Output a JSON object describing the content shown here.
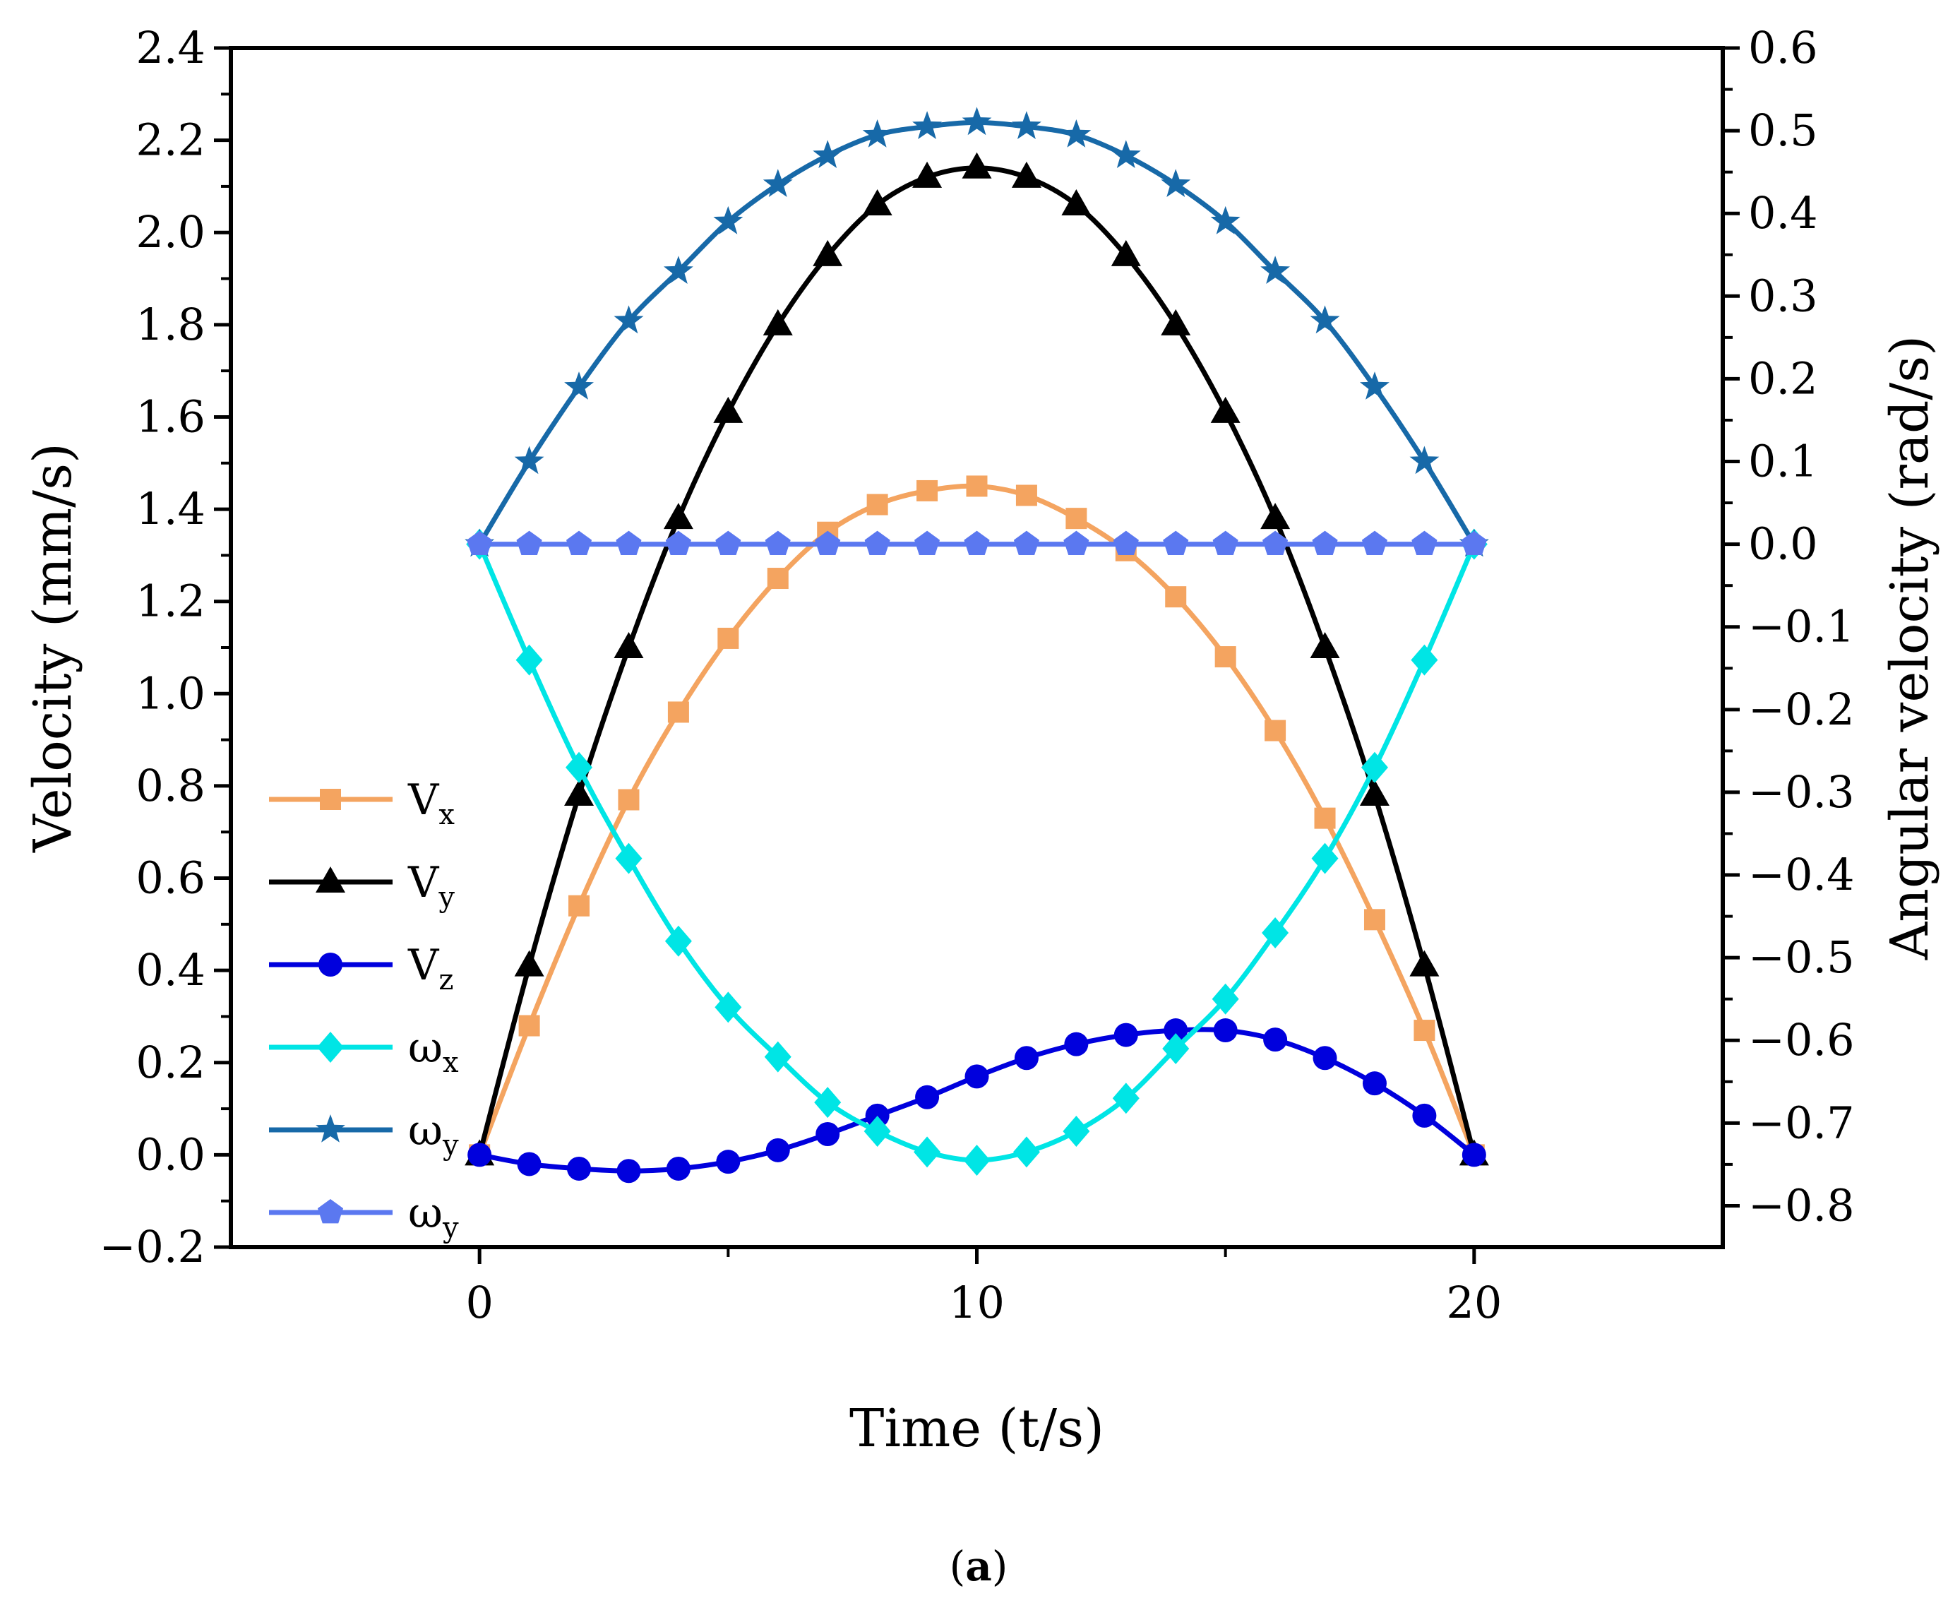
{
  "chart_data": {
    "type": "line",
    "title": "",
    "xlabel": "Time (t/s)",
    "ylabel": "Velocity (mm/s)",
    "y2label": "Angular velocity (rad/s)",
    "caption_open": "(",
    "caption_bold": "a",
    "caption_close": ")",
    "xlim": [
      -5,
      25
    ],
    "ylim": [
      -0.2,
      2.4
    ],
    "y2lim": [
      -0.85,
      0.6
    ],
    "xticks": [
      0,
      10,
      20
    ],
    "yticks": [
      -0.2,
      0.0,
      0.2,
      0.4,
      0.6,
      0.8,
      1.0,
      1.2,
      1.4,
      1.6,
      1.8,
      2.0,
      2.2,
      2.4
    ],
    "y2ticks": [
      -0.8,
      -0.7,
      -0.6,
      -0.5,
      -0.4,
      -0.3,
      -0.2,
      -0.1,
      0.0,
      0.1,
      0.2,
      0.3,
      0.4,
      0.5,
      0.6
    ],
    "x": [
      0,
      1,
      2,
      3,
      4,
      5,
      6,
      7,
      8,
      9,
      10,
      11,
      12,
      13,
      14,
      15,
      16,
      17,
      18,
      19,
      20
    ],
    "legend_position": "left",
    "series": [
      {
        "name": "V",
        "sub": "x",
        "axis": "left",
        "color": "#F4A460",
        "marker": "square",
        "values": [
          0.0,
          0.28,
          0.54,
          0.77,
          0.96,
          1.12,
          1.25,
          1.35,
          1.41,
          1.44,
          1.45,
          1.43,
          1.38,
          1.31,
          1.21,
          1.08,
          0.92,
          0.73,
          0.51,
          0.27,
          0.0
        ]
      },
      {
        "name": "V",
        "sub": "y",
        "axis": "left",
        "color": "#000000",
        "marker": "triangle",
        "values": [
          0.0,
          0.41,
          0.78,
          1.1,
          1.38,
          1.61,
          1.8,
          1.95,
          2.06,
          2.12,
          2.14,
          2.12,
          2.06,
          1.95,
          1.8,
          1.61,
          1.38,
          1.1,
          0.78,
          0.41,
          0.0
        ]
      },
      {
        "name": "V",
        "sub": "z",
        "axis": "left",
        "color": "#0000DD",
        "marker": "circle",
        "values": [
          0.0,
          -0.02,
          -0.03,
          -0.035,
          -0.03,
          -0.015,
          0.01,
          0.045,
          0.085,
          0.125,
          0.17,
          0.21,
          0.24,
          0.26,
          0.27,
          0.27,
          0.25,
          0.21,
          0.155,
          0.085,
          0.0
        ]
      },
      {
        "name": "ω",
        "sub": "x",
        "axis": "right",
        "color": "#00E5E5",
        "marker": "diamond",
        "values": [
          0.0,
          -0.14,
          -0.27,
          -0.38,
          -0.48,
          -0.56,
          -0.62,
          -0.675,
          -0.71,
          -0.735,
          -0.745,
          -0.735,
          -0.71,
          -0.67,
          -0.61,
          -0.55,
          -0.47,
          -0.38,
          -0.27,
          -0.14,
          0.0
        ]
      },
      {
        "name": "ω",
        "sub": "y",
        "axis": "right",
        "color": "#1769A8",
        "marker": "star",
        "values": [
          0.0,
          0.1,
          0.19,
          0.27,
          0.33,
          0.39,
          0.435,
          0.47,
          0.495,
          0.505,
          0.51,
          0.505,
          0.495,
          0.47,
          0.435,
          0.39,
          0.33,
          0.27,
          0.19,
          0.1,
          0.0
        ]
      },
      {
        "name": "ω",
        "sub": "y",
        "axis": "right",
        "color": "#5B78F0",
        "marker": "pentagon",
        "values": [
          0.0,
          0.0,
          0.0,
          0.0,
          0.0,
          0.0,
          0.0,
          0.0,
          0.0,
          0.0,
          0.0,
          0.0,
          0.0,
          0.0,
          0.0,
          0.0,
          0.0,
          0.0,
          0.0,
          0.0,
          0.0
        ]
      }
    ]
  }
}
